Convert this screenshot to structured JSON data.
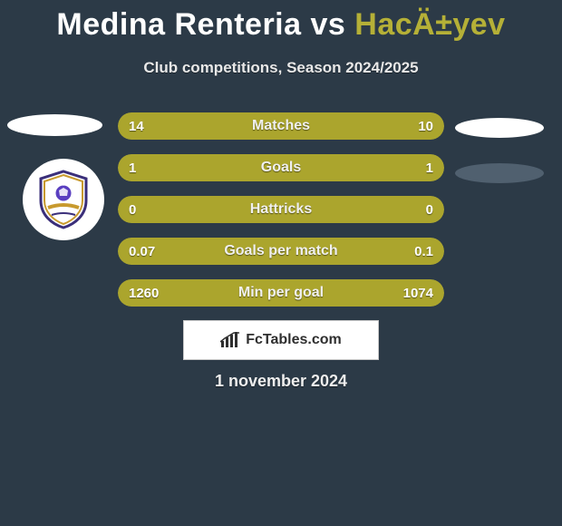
{
  "title": {
    "player1": "Medina Renteria",
    "vs": "vs",
    "player2": "HacÄ±yev"
  },
  "subtitle": "Club competitions, Season 2024/2025",
  "colors": {
    "background": "#2c3a47",
    "row_bg": "#3a4a58",
    "player1_bar": "#aba52d",
    "player2_bar": "#aba52d",
    "title_p1": "#ffffff",
    "title_p2": "#b5b037",
    "text": "#ffffff",
    "shield_border": "#3b2f7a",
    "shield_fill": "#ffffff",
    "shield_accent": "#c89a2e",
    "shield_ball": "#5a3fc0"
  },
  "crest": {
    "present": true,
    "side": "left"
  },
  "stats": {
    "row_width": 360,
    "rows": [
      {
        "label": "Matches",
        "left": "14",
        "right": "10",
        "left_pct": 58.3,
        "right_pct": 41.7
      },
      {
        "label": "Goals",
        "left": "1",
        "right": "1",
        "left_pct": 50.0,
        "right_pct": 50.0
      },
      {
        "label": "Hattricks",
        "left": "0",
        "right": "0",
        "left_pct": 50.0,
        "right_pct": 50.0
      },
      {
        "label": "Goals per match",
        "left": "0.07",
        "right": "0.1",
        "left_pct": 41.2,
        "right_pct": 58.8
      },
      {
        "label": "Min per goal",
        "left": "1260",
        "right": "1074",
        "left_pct": 54.0,
        "right_pct": 46.0
      }
    ]
  },
  "footer": {
    "brand": "FcTables.com",
    "date": "1 november 2024"
  }
}
